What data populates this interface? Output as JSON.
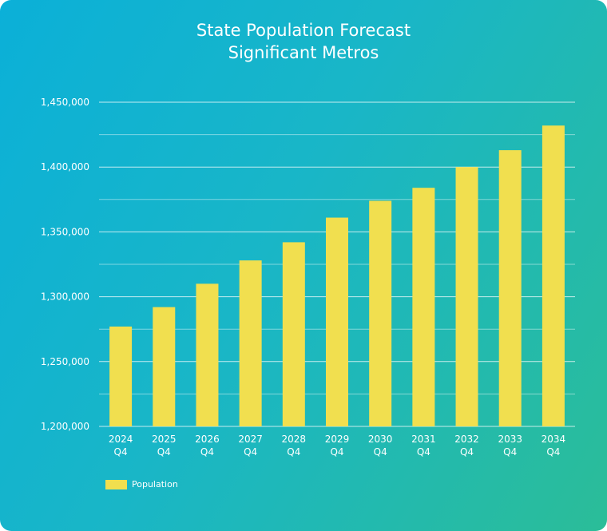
{
  "colors": {
    "bar": "#f1df4f",
    "grid": "#ffffff",
    "text": "#ffffff"
  },
  "chart_data": {
    "type": "bar",
    "title": "State Population Forecast",
    "subtitle": "Significant Metros",
    "categories": [
      [
        "2024",
        "Q4"
      ],
      [
        "2025",
        "Q4"
      ],
      [
        "2026",
        "Q4"
      ],
      [
        "2027",
        "Q4"
      ],
      [
        "2028",
        "Q4"
      ],
      [
        "2029",
        "Q4"
      ],
      [
        "2030",
        "Q4"
      ],
      [
        "2031",
        "Q4"
      ],
      [
        "2032",
        "Q4"
      ],
      [
        "2033",
        "Q4"
      ],
      [
        "2034",
        "Q4"
      ]
    ],
    "series": [
      {
        "name": "Population",
        "values": [
          1277000,
          1292000,
          1310000,
          1328000,
          1342000,
          1361000,
          1374000,
          1384000,
          1400000,
          1413000,
          1432000
        ]
      }
    ],
    "ylim": [
      1200000,
      1450000
    ],
    "yticks": [
      "1,200,000",
      "1,250,000",
      "1,300,000",
      "1,350,000",
      "1,400,000",
      "1,450,000"
    ],
    "ytick_values": [
      1200000,
      1250000,
      1300000,
      1350000,
      1400000,
      1450000
    ],
    "grid": true,
    "legend": "bottom-left",
    "xlabel": "",
    "ylabel": ""
  }
}
